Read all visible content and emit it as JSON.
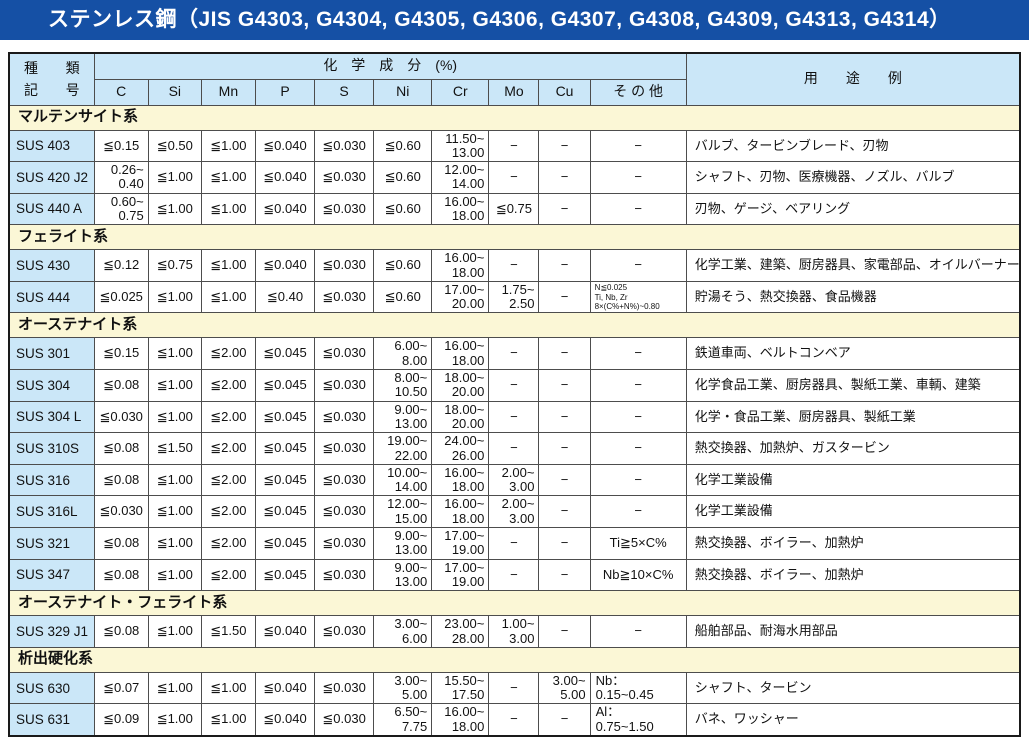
{
  "title": "ステンレス鋼（JIS G4303, G4304, G4305, G4306, G4307, G4308, G4309, G4313, G4314）",
  "colors": {
    "title_bar": "#1550a5",
    "header_blue": "#cbe7f8",
    "section_yellow": "#fbf7d6"
  },
  "header": {
    "kind_chars": [
      "種",
      "類",
      "記",
      "号"
    ],
    "chem_label": "化　学　成　分　(%)",
    "elements": [
      "C",
      "Si",
      "Mn",
      "P",
      "S",
      "Ni",
      "Cr",
      "Mo",
      "Cu",
      "そ の 他"
    ],
    "usage_label": "用　　途　　例"
  },
  "sections": [
    {
      "name": "マルテンサイト系",
      "rows": [
        {
          "code": "SUS 403",
          "c": "≦0.15",
          "si": "≦0.50",
          "mn": "≦1.00",
          "p": "≦0.040",
          "s": "≦0.030",
          "ni": "≦0.60",
          "cr": "11.50~\n13.00",
          "mo": "−",
          "cu": "−",
          "other": "−",
          "usage": "バルブ、タービンブレード、刃物"
        },
        {
          "code": "SUS 420 J2",
          "c": "0.26~\n0.40",
          "si": "≦1.00",
          "mn": "≦1.00",
          "p": "≦0.040",
          "s": "≦0.030",
          "ni": "≦0.60",
          "cr": "12.00~\n14.00",
          "mo": "−",
          "cu": "−",
          "other": "−",
          "usage": "シャフト、刃物、医療機器、ノズル、バルブ"
        },
        {
          "code": "SUS 440 A",
          "c": "0.60~\n0.75",
          "si": "≦1.00",
          "mn": "≦1.00",
          "p": "≦0.040",
          "s": "≦0.030",
          "ni": "≦0.60",
          "cr": "16.00~\n18.00",
          "mo": "≦0.75",
          "cu": "−",
          "other": "−",
          "usage": "刃物、ゲージ、ベアリング"
        }
      ]
    },
    {
      "name": "フェライト系",
      "rows": [
        {
          "code": "SUS 430",
          "c": "≦0.12",
          "si": "≦0.75",
          "mn": "≦1.00",
          "p": "≦0.040",
          "s": "≦0.030",
          "ni": "≦0.60",
          "cr": "16.00~\n18.00",
          "mo": "−",
          "cu": "−",
          "other": "−",
          "usage": "化学工業、建築、厨房器具、家電部品、オイルバーナー部品"
        },
        {
          "code": "SUS 444",
          "c": "≦0.025",
          "si": "≦1.00",
          "mn": "≦1.00",
          "p": "≦0.40",
          "s": "≦0.030",
          "ni": "≦0.60",
          "cr": "17.00~\n20.00",
          "mo": "1.75~\n2.50",
          "cu": "−",
          "other": "N≦0.025\nTi, Nb, Zr\n8×(C%+N%)~0.80",
          "usage": "貯湯そう、熱交換器、食品機器"
        }
      ]
    },
    {
      "name": "オーステナイト系",
      "rows": [
        {
          "code": "SUS 301",
          "c": "≦0.15",
          "si": "≦1.00",
          "mn": "≦2.00",
          "p": "≦0.045",
          "s": "≦0.030",
          "ni": "6.00~\n8.00",
          "cr": "16.00~\n18.00",
          "mo": "−",
          "cu": "−",
          "other": "−",
          "usage": "鉄道車両、ベルトコンベア"
        },
        {
          "code": "SUS 304",
          "c": "≦0.08",
          "si": "≦1.00",
          "mn": "≦2.00",
          "p": "≦0.045",
          "s": "≦0.030",
          "ni": "8.00~\n10.50",
          "cr": "18.00~\n20.00",
          "mo": "−",
          "cu": "−",
          "other": "−",
          "usage": "化学食品工業、厨房器具、製紙工業、車輌、建築"
        },
        {
          "code": "SUS 304 L",
          "c": "≦0.030",
          "si": "≦1.00",
          "mn": "≦2.00",
          "p": "≦0.045",
          "s": "≦0.030",
          "ni": "9.00~\n13.00",
          "cr": "18.00~\n20.00",
          "mo": "−",
          "cu": "−",
          "other": "−",
          "usage": "化学・食品工業、厨房器具、製紙工業"
        },
        {
          "code": "SUS 310S",
          "c": "≦0.08",
          "si": "≦1.50",
          "mn": "≦2.00",
          "p": "≦0.045",
          "s": "≦0.030",
          "ni": "19.00~\n22.00",
          "cr": "24.00~\n26.00",
          "mo": "−",
          "cu": "−",
          "other": "−",
          "usage": "熱交換器、加熱炉、ガスタービン"
        },
        {
          "code": "SUS 316",
          "c": "≦0.08",
          "si": "≦1.00",
          "mn": "≦2.00",
          "p": "≦0.045",
          "s": "≦0.030",
          "ni": "10.00~\n14.00",
          "cr": "16.00~\n18.00",
          "mo": "2.00~\n3.00",
          "cu": "−",
          "other": "−",
          "usage": "化学工業設備"
        },
        {
          "code": "SUS 316L",
          "c": "≦0.030",
          "si": "≦1.00",
          "mn": "≦2.00",
          "p": "≦0.045",
          "s": "≦0.030",
          "ni": "12.00~\n15.00",
          "cr": "16.00~\n18.00",
          "mo": "2.00~\n3.00",
          "cu": "−",
          "other": "−",
          "usage": "化学工業設備"
        },
        {
          "code": "SUS 321",
          "c": "≦0.08",
          "si": "≦1.00",
          "mn": "≦2.00",
          "p": "≦0.045",
          "s": "≦0.030",
          "ni": "9.00~\n13.00",
          "cr": "17.00~\n19.00",
          "mo": "−",
          "cu": "−",
          "other": "Ti≧5×C%",
          "usage": "熱交換器、ボイラー、加熱炉"
        },
        {
          "code": "SUS 347",
          "c": "≦0.08",
          "si": "≦1.00",
          "mn": "≦2.00",
          "p": "≦0.045",
          "s": "≦0.030",
          "ni": "9.00~\n13.00",
          "cr": "17.00~\n19.00",
          "mo": "−",
          "cu": "−",
          "other": "Nb≧10×C%",
          "usage": "熱交換器、ボイラー、加熱炉"
        }
      ]
    },
    {
      "name": "オーステナイト・フェライト系",
      "rows": [
        {
          "code": "SUS 329 J1",
          "c": "≦0.08",
          "si": "≦1.00",
          "mn": "≦1.50",
          "p": "≦0.040",
          "s": "≦0.030",
          "ni": "3.00~\n6.00",
          "cr": "23.00~\n28.00",
          "mo": "1.00~\n3.00",
          "cu": "−",
          "other": "−",
          "usage": "船舶部品、耐海水用部品"
        }
      ]
    },
    {
      "name": "析出硬化系",
      "rows": [
        {
          "code": "SUS 630",
          "c": "≦0.07",
          "si": "≦1.00",
          "mn": "≦1.00",
          "p": "≦0.040",
          "s": "≦0.030",
          "ni": "3.00~\n5.00",
          "cr": "15.50~\n17.50",
          "mo": "−",
          "cu": "3.00~\n5.00",
          "other": "Nb：\n0.15~0.45",
          "usage": "シャフト、タービン"
        },
        {
          "code": "SUS 631",
          "c": "≦0.09",
          "si": "≦1.00",
          "mn": "≦1.00",
          "p": "≦0.040",
          "s": "≦0.030",
          "ni": "6.50~\n7.75",
          "cr": "16.00~\n18.00",
          "mo": "−",
          "cu": "−",
          "other": "Al：\n0.75~1.50",
          "usage": "バネ、ワッシャー"
        }
      ]
    }
  ]
}
